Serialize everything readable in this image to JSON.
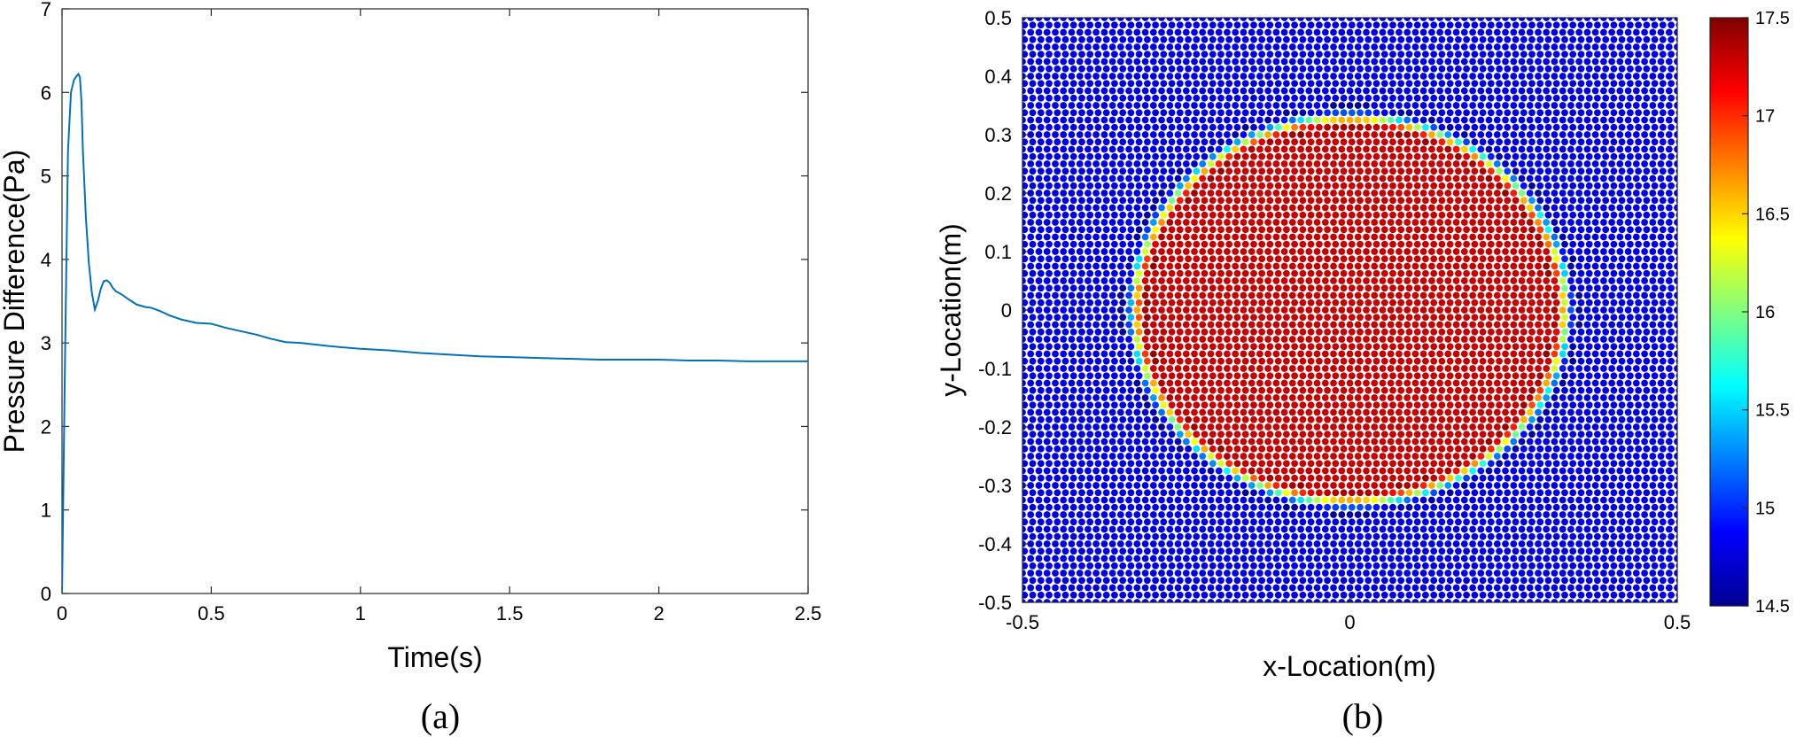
{
  "panels": {
    "a": {
      "caption": "(a)"
    },
    "b": {
      "caption": "(b)"
    }
  },
  "chart_data": [
    {
      "type": "line",
      "title": "",
      "xlabel": "Time(s)",
      "ylabel": "Pressure Difference(Pa)",
      "xlim": [
        0,
        2.5
      ],
      "ylim": [
        0,
        7
      ],
      "xticks": [
        0,
        0.5,
        1,
        1.5,
        2,
        2.5
      ],
      "xtick_labels": [
        "0",
        "0.5",
        "1",
        "1.5",
        "2",
        "2.5"
      ],
      "yticks": [
        0,
        1,
        2,
        3,
        4,
        5,
        6,
        7
      ],
      "ytick_labels": [
        "0",
        "1",
        "2",
        "3",
        "4",
        "5",
        "6",
        "7"
      ],
      "grid": false,
      "line_color": "#0072BD",
      "series": [
        {
          "x": [
            0,
            0.01,
            0.02,
            0.03,
            0.04,
            0.05,
            0.055,
            0.06,
            0.065,
            0.07,
            0.08,
            0.09,
            0.1,
            0.11,
            0.12,
            0.13,
            0.14,
            0.15,
            0.16,
            0.17,
            0.18,
            0.2,
            0.22,
            0.25,
            0.28,
            0.3,
            0.33,
            0.36,
            0.4,
            0.45,
            0.5,
            0.55,
            0.6,
            0.65,
            0.7,
            0.75,
            0.8,
            0.9,
            1.0,
            1.1,
            1.2,
            1.3,
            1.4,
            1.5,
            1.6,
            1.7,
            1.8,
            1.9,
            2.0,
            2.1,
            2.2,
            2.3,
            2.4,
            2.5
          ],
          "y": [
            0,
            2.8,
            5.3,
            6.0,
            6.15,
            6.2,
            6.22,
            6.18,
            5.9,
            5.3,
            4.5,
            3.95,
            3.6,
            3.4,
            3.5,
            3.65,
            3.74,
            3.75,
            3.72,
            3.66,
            3.62,
            3.58,
            3.53,
            3.46,
            3.43,
            3.42,
            3.38,
            3.33,
            3.28,
            3.24,
            3.23,
            3.18,
            3.14,
            3.1,
            3.05,
            3.01,
            3.0,
            2.96,
            2.93,
            2.91,
            2.88,
            2.86,
            2.84,
            2.83,
            2.82,
            2.81,
            2.8,
            2.8,
            2.8,
            2.79,
            2.79,
            2.78,
            2.78,
            2.78
          ]
        }
      ]
    },
    {
      "type": "scatter",
      "title": "",
      "xlabel": "x-Location(m)",
      "ylabel": "y-Location(m)",
      "xlim": [
        -0.5,
        0.5
      ],
      "ylim": [
        -0.5,
        0.5
      ],
      "xticks": [
        -0.5,
        0,
        0.5
      ],
      "xtick_labels": [
        "-0.5",
        "0",
        "0.5"
      ],
      "yticks": [
        -0.5,
        -0.4,
        -0.3,
        -0.2,
        -0.1,
        0,
        0.1,
        0.2,
        0.3,
        0.4,
        0.5
      ],
      "ytick_labels": [
        "-0.5",
        "-0.4",
        "-0.3",
        "-0.2",
        "-0.1",
        "0",
        "0.1",
        "0.2",
        "0.3",
        "0.4",
        "0.5"
      ],
      "field": {
        "description_of_pattern": "particles colored by value; disc of high value centered at origin",
        "circle_center": [
          0,
          0
        ],
        "circle_radius": 0.33,
        "inside_value": 17.5,
        "outside_value": 14.5,
        "particle_spacing": 0.0125
      },
      "colorbar": {
        "min": 14.5,
        "max": 17.5,
        "ticks": [
          14.5,
          15,
          15.5,
          16,
          16.5,
          17,
          17.5
        ],
        "tick_labels": [
          "14.5",
          "15",
          "15.5",
          "16",
          "16.5",
          "17",
          "17.5"
        ],
        "colormap": "jet"
      },
      "grid": false
    }
  ]
}
